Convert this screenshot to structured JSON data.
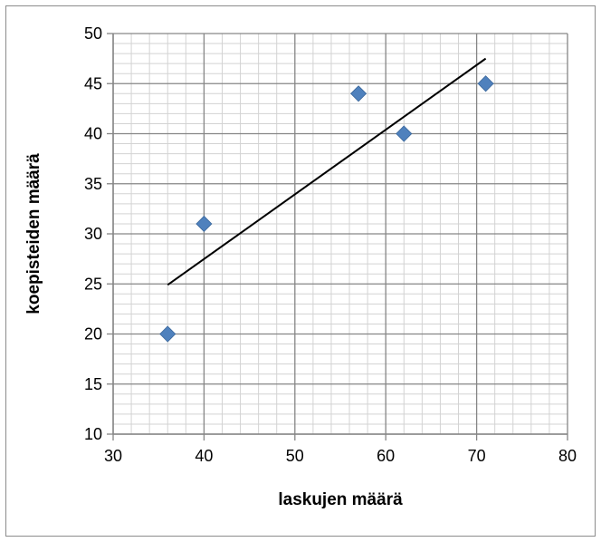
{
  "chart_data": {
    "type": "scatter",
    "title": "",
    "xlabel": "laskujen määrä",
    "ylabel": "koepisteiden määrä",
    "xlim": [
      30,
      80
    ],
    "ylim": [
      10,
      50
    ],
    "x_major_step": 10,
    "y_major_step": 5,
    "x_minor_step": 2,
    "y_minor_step": 1,
    "x_ticks": [
      "30",
      "40",
      "50",
      "60",
      "70",
      "80"
    ],
    "y_ticks": [
      "10",
      "15",
      "20",
      "25",
      "30",
      "35",
      "40",
      "45",
      "50"
    ],
    "grid": true,
    "legend": "none",
    "series": [
      {
        "marker": "diamond",
        "color": "#4f81bd",
        "points": [
          {
            "x": 36,
            "y": 20
          },
          {
            "x": 40,
            "y": 31
          },
          {
            "x": 57,
            "y": 44
          },
          {
            "x": 62,
            "y": 40
          },
          {
            "x": 71,
            "y": 45
          }
        ]
      }
    ],
    "trendline": {
      "type": "linear",
      "color": "#000000",
      "start": {
        "x": 36,
        "y": 24.9
      },
      "end": {
        "x": 71,
        "y": 47.5
      }
    }
  }
}
